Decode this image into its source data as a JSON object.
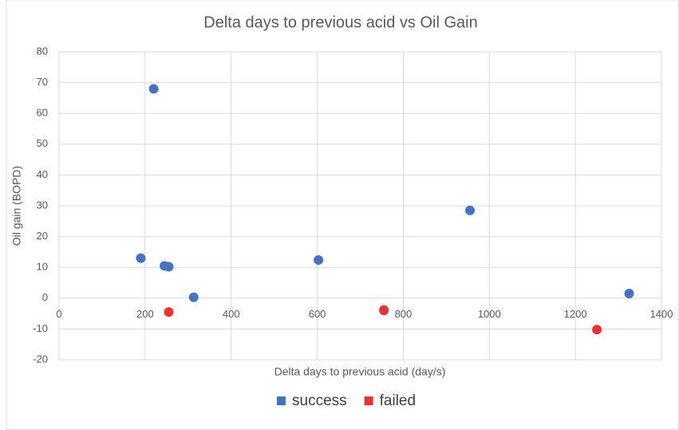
{
  "chart_data": {
    "type": "scatter",
    "title": "Delta days to previous acid vs Oil Gain",
    "x_label": "Delta days to previous acid (day/s)",
    "y_label": "Oil gain (BOPD)",
    "xlim": [
      0,
      1400
    ],
    "xticks": [
      0,
      200,
      400,
      600,
      800,
      1000,
      1200,
      1400
    ],
    "ylim": [
      -20,
      80
    ],
    "yticks": [
      -20,
      -10,
      0,
      10,
      20,
      30,
      40,
      50,
      60,
      70,
      80
    ],
    "grid": true,
    "legend": "bottom",
    "series": [
      {
        "name": "success",
        "color": "#4472c4",
        "x": [
          190,
          220,
          245,
          255,
          313,
          603,
          755,
          955,
          1325
        ],
        "values": [
          13,
          68,
          10.5,
          10.2,
          0.3,
          12.4,
          -4,
          28.5,
          1.5
        ]
      },
      {
        "name": "failed",
        "color": "#f03030",
        "x": [
          255,
          755,
          1250
        ],
        "values": [
          -4.5,
          -3.8,
          -10.2
        ]
      }
    ]
  }
}
